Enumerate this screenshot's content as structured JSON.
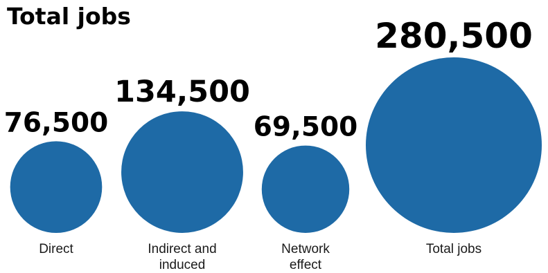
{
  "title": "Total jobs",
  "chart_data": {
    "type": "bubble",
    "title": "Total jobs",
    "unit": "jobs",
    "series": [
      {
        "categories": [
          "Direct",
          "Indirect and induced",
          "Network effect",
          "Total jobs"
        ],
        "label_lines": [
          [
            "Direct"
          ],
          [
            "Indirect and",
            "induced"
          ],
          [
            "Network",
            "effect"
          ],
          [
            "Total jobs"
          ]
        ],
        "values": [
          76500,
          134500,
          69500,
          280500
        ],
        "value_labels": [
          "76,500",
          "134,500",
          "69,500",
          "280,500"
        ]
      }
    ],
    "colors": {
      "bubble": "#1e6aa6"
    }
  }
}
